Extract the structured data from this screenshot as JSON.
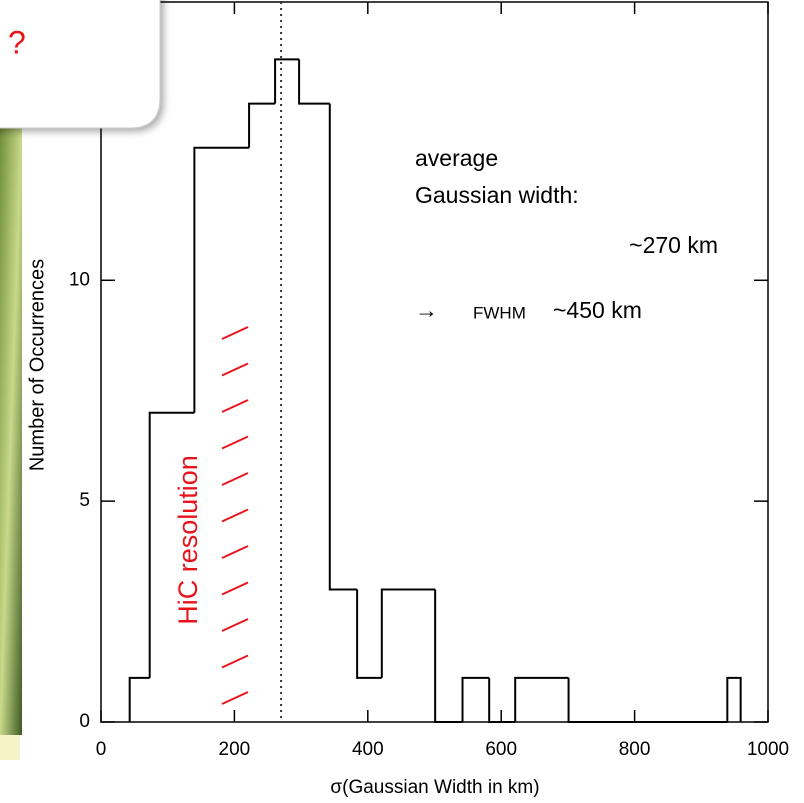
{
  "chart_data": {
    "type": "histogram",
    "x_label": "σ(Gaussian Width in km)",
    "y_label": "Number of Occurrences",
    "bins": [
      43,
      73,
      140,
      222,
      261,
      297,
      343,
      384,
      421,
      501,
      542,
      582,
      621,
      701,
      939,
      959
    ],
    "values": [
      1,
      7,
      13,
      14,
      15,
      14,
      3,
      1,
      3,
      0,
      1,
      0,
      1,
      0,
      1
    ],
    "color": "#000000",
    "mean_line": 270,
    "xlim": [
      0,
      1000
    ],
    "xticks": [
      0,
      200,
      400,
      600,
      800,
      1000
    ],
    "ylim": [
      0,
      16.3
    ],
    "yticks": [
      0,
      5,
      10
    ],
    "annotations": [
      "average",
      "Gaussian width:",
      "~270 km",
      "→",
      "FWHM",
      "~450 km",
      "HiC resolution",
      "?"
    ]
  }
}
